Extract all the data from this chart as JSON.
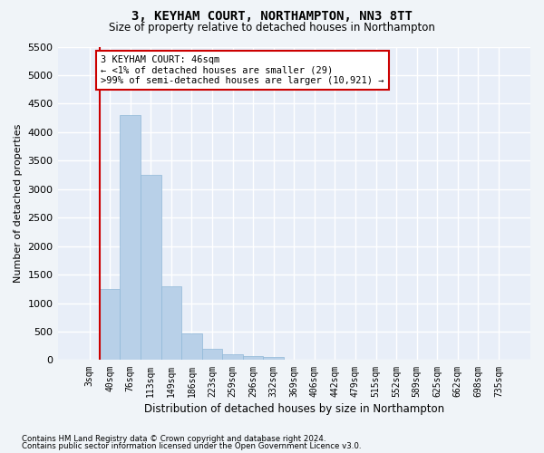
{
  "title": "3, KEYHAM COURT, NORTHAMPTON, NN3 8TT",
  "subtitle": "Size of property relative to detached houses in Northampton",
  "xlabel": "Distribution of detached houses by size in Northampton",
  "ylabel": "Number of detached properties",
  "bar_color": "#b8d0e8",
  "bar_edge_color": "#90b8d8",
  "bg_color": "#e8eef8",
  "grid_color": "#ffffff",
  "fig_facecolor": "#f0f4f8",
  "annotation_box_facecolor": "#ffffff",
  "annotation_border_color": "#cc0000",
  "vline_color": "#cc0000",
  "categories": [
    "3sqm",
    "40sqm",
    "76sqm",
    "113sqm",
    "149sqm",
    "186sqm",
    "223sqm",
    "259sqm",
    "296sqm",
    "332sqm",
    "369sqm",
    "406sqm",
    "442sqm",
    "479sqm",
    "515sqm",
    "552sqm",
    "589sqm",
    "625sqm",
    "662sqm",
    "698sqm",
    "735sqm"
  ],
  "bar_values": [
    0,
    1250,
    4300,
    3250,
    1300,
    475,
    200,
    100,
    70,
    50,
    0,
    0,
    0,
    0,
    0,
    0,
    0,
    0,
    0,
    0,
    0
  ],
  "ylim_max": 5500,
  "yticks": [
    0,
    500,
    1000,
    1500,
    2000,
    2500,
    3000,
    3500,
    4000,
    4500,
    5000,
    5500
  ],
  "vline_x": 0.5,
  "annotation_line1": "3 KEYHAM COURT: 46sqm",
  "annotation_line2": "← <1% of detached houses are smaller (29)",
  "annotation_line3": ">99% of semi-detached houses are larger (10,921) →",
  "footnote1": "Contains HM Land Registry data © Crown copyright and database right 2024.",
  "footnote2": "Contains public sector information licensed under the Open Government Licence v3.0."
}
